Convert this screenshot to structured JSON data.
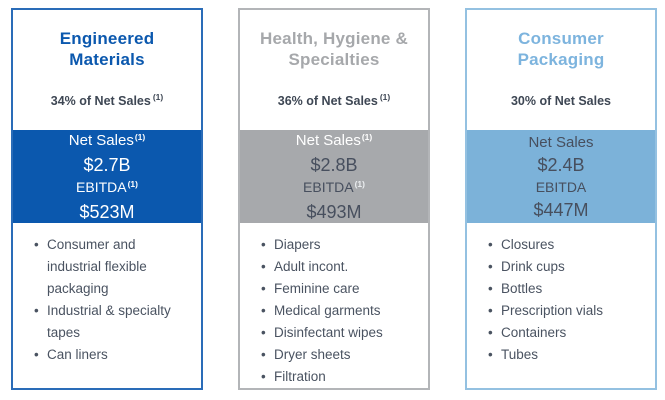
{
  "palette": {
    "dark_blue": "#0b58ae",
    "gray": "#a7a9ac",
    "light_blue": "#7cb2d9",
    "navy_text": "#474f5e",
    "white": "#ffffff"
  },
  "cards": [
    {
      "title_line1": "Engineered",
      "title_line2": "Materials",
      "net_sales_pct": "34% of Net Sales",
      "net_sales_pct_sup": "(1)",
      "metrics": [
        {
          "label": "Net Sales",
          "sup": "(1)"
        },
        {
          "label": "$2.7B"
        },
        {
          "label": "EBITDA",
          "sup": "(1)"
        },
        {
          "label": "$523M"
        }
      ],
      "bullets": [
        "Consumer and industrial flexible packaging",
        "Industrial & specialty tapes",
        "Can liners"
      ]
    },
    {
      "title_line1": "Health, Hygiene &",
      "title_line2": "Specialties",
      "net_sales_pct": "36% of Net Sales",
      "net_sales_pct_sup": "(1)",
      "metrics": [
        {
          "label": "Net Sales",
          "sup": "(1)"
        },
        {
          "label": "$2.8B"
        },
        {
          "label": "EBITDA",
          "sup": "(1)"
        },
        {
          "label": "$493M"
        }
      ],
      "bullets": [
        "Diapers",
        "Adult incont.",
        "Feminine care",
        "Medical garments",
        "Disinfectant wipes",
        "Dryer sheets",
        "Filtration"
      ]
    },
    {
      "title_line1": "Consumer",
      "title_line2": "Packaging",
      "net_sales_pct": "30% of Net Sales",
      "metrics": [
        {
          "label": "Net Sales"
        },
        {
          "label": "$2.4B"
        },
        {
          "label": "EBITDA"
        },
        {
          "label": "$447M"
        }
      ],
      "bullets": [
        "Closures",
        "Drink cups",
        "Bottles",
        "Prescription vials",
        "Containers",
        "Tubes"
      ]
    }
  ]
}
